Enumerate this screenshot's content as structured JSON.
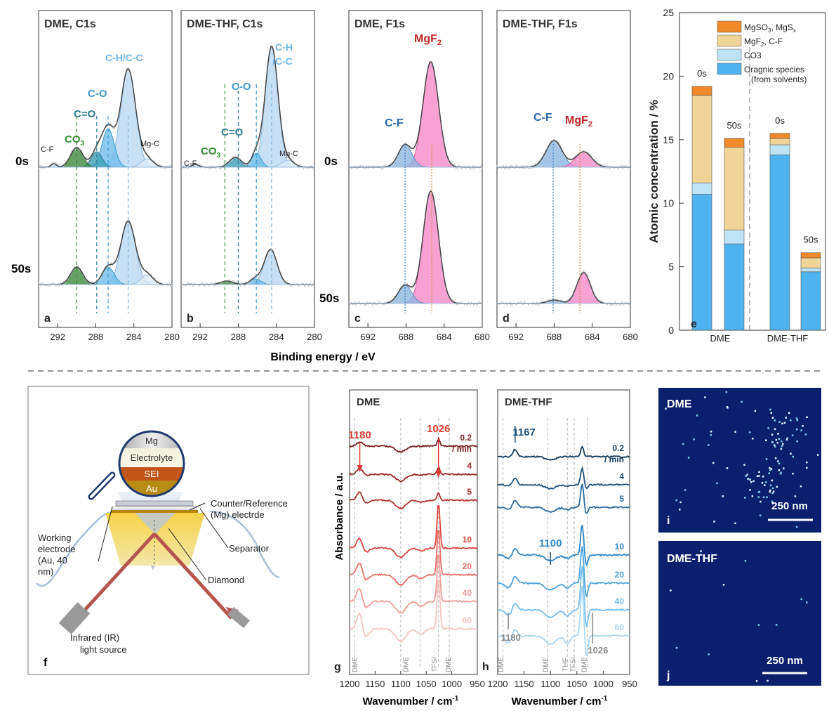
{
  "colors": {
    "organic": "#4fb3f0",
    "co3": "#bfe3f7",
    "mgf2": "#f0d498",
    "mgso3": "#f08a2a",
    "c1s_fill": "#bcd9f2",
    "co3_green": "#3e8a3e",
    "mgf2_pink": "#f58bc8",
    "cf_blue": "#7fa9d9",
    "dme_red": "#c0302a",
    "thf_blue": "#1f5a8a",
    "tem_bg": "#0a1f6e"
  },
  "panels": {
    "a": {
      "letter": "a",
      "title": "DME, C1s"
    },
    "b": {
      "letter": "b",
      "title": "DME-THF, C1s"
    },
    "c": {
      "letter": "c",
      "title": "DME, F1s"
    },
    "d": {
      "letter": "d",
      "title": "DME-THF, F1s"
    },
    "e": {
      "letter": "e"
    },
    "f": {
      "letter": "f"
    },
    "g": {
      "letter": "g",
      "title": "DME"
    },
    "h": {
      "letter": "h",
      "title": "DME-THF"
    },
    "i": {
      "letter": "i",
      "title": "DME",
      "scale": "250 nm"
    },
    "j": {
      "letter": "j",
      "title": "DME-THF",
      "scale": "250 nm"
    }
  },
  "xps": {
    "time_0": "0s",
    "time_50": "50s",
    "xlabel": "Binding energy / eV",
    "c1s_ticks": [
      "292",
      "288",
      "284",
      "280"
    ],
    "f1s_ticks": [
      "692",
      "688",
      "684",
      "680"
    ],
    "labels": {
      "cf": "C-F",
      "co3": "CO",
      "co3_sub": "3",
      "ceo": "C=O",
      "co": "C-O",
      "chcc": "C-H/C-C",
      "ch": "C-H",
      "cc": "/C-C",
      "mgc": "Mg-C",
      "mgf2": "MgF",
      "mgf2_sub": "2"
    }
  },
  "chart_data": {
    "type": "bar",
    "stacked": true,
    "categories": [
      "DME 0s",
      "DME 50s",
      "DME-THF 0s",
      "DME-THF 50s"
    ],
    "group_labels": [
      "DME",
      "DME-THF"
    ],
    "bar_labels": [
      "0s",
      "50s",
      "0s",
      "50s"
    ],
    "series": [
      {
        "name": "Oragnic species (from solvents)",
        "values": [
          10.7,
          6.8,
          13.8,
          4.6
        ]
      },
      {
        "name": "CO3",
        "values": [
          0.9,
          1.1,
          0.8,
          0.3
        ]
      },
      {
        "name": "MgF2, C-F",
        "values": [
          6.9,
          6.5,
          0.5,
          0.8
        ]
      },
      {
        "name": "MgSO3, MgSx",
        "values": [
          0.7,
          0.7,
          0.4,
          0.4
        ]
      }
    ],
    "ylabel": "Atomic concentration / %",
    "ylim": [
      0,
      25
    ],
    "yticks": [
      0,
      5,
      10,
      15,
      20,
      25
    ],
    "legend_position": "top-right"
  },
  "legend": {
    "mgso3": "MgSO",
    "mgso3_sub": "3",
    "mgso3_b": ", MgS",
    "mgso3_sub2": "x",
    "mgf2": "MgF",
    "mgf2_sub": "2",
    "mgf2_b": ", C-F",
    "co3": "CO3",
    "org1": "Oragnic species",
    "org2": "(from solvents)"
  },
  "schematic": {
    "mg": "Mg",
    "electrolyte": "Electrolyte",
    "sei": "SEI",
    "au": "Au",
    "counter1": "Counter/Reference",
    "counter2": "(Mg) electrde",
    "working1": "Working",
    "working2": "electrode",
    "working3": "(Au, 40",
    "working4": "nm)",
    "separator": "Separator",
    "diamond": "Diamond",
    "ir1": "Infrared (IR)",
    "ir2": "light source"
  },
  "ir": {
    "ylabel": "Absorbance / a.u.",
    "xlabel": "Wavenumber / cm",
    "xlabel_sup": "-1",
    "xticks": [
      "1200",
      "1150",
      "1100",
      "1050",
      "1000",
      "950"
    ],
    "dme_times": [
      "0.2",
      "/ min",
      "4",
      "5",
      "10",
      "20",
      "40",
      "60"
    ],
    "thf_times": [
      "0.2",
      "/ min",
      "4",
      "5",
      "10",
      "20",
      "40",
      "60"
    ],
    "dme_peaks": {
      "p1": "1180",
      "p2": "1026"
    },
    "thf_peaks": {
      "p1": "1167",
      "p2": "1100",
      "p3": "1180",
      "p4": "1026"
    },
    "dme_bands": [
      "DME",
      "DME",
      "TFSI",
      "DME"
    ],
    "thf_bands": [
      "DME",
      "DME",
      "THF",
      "TFSI",
      "DME"
    ]
  }
}
